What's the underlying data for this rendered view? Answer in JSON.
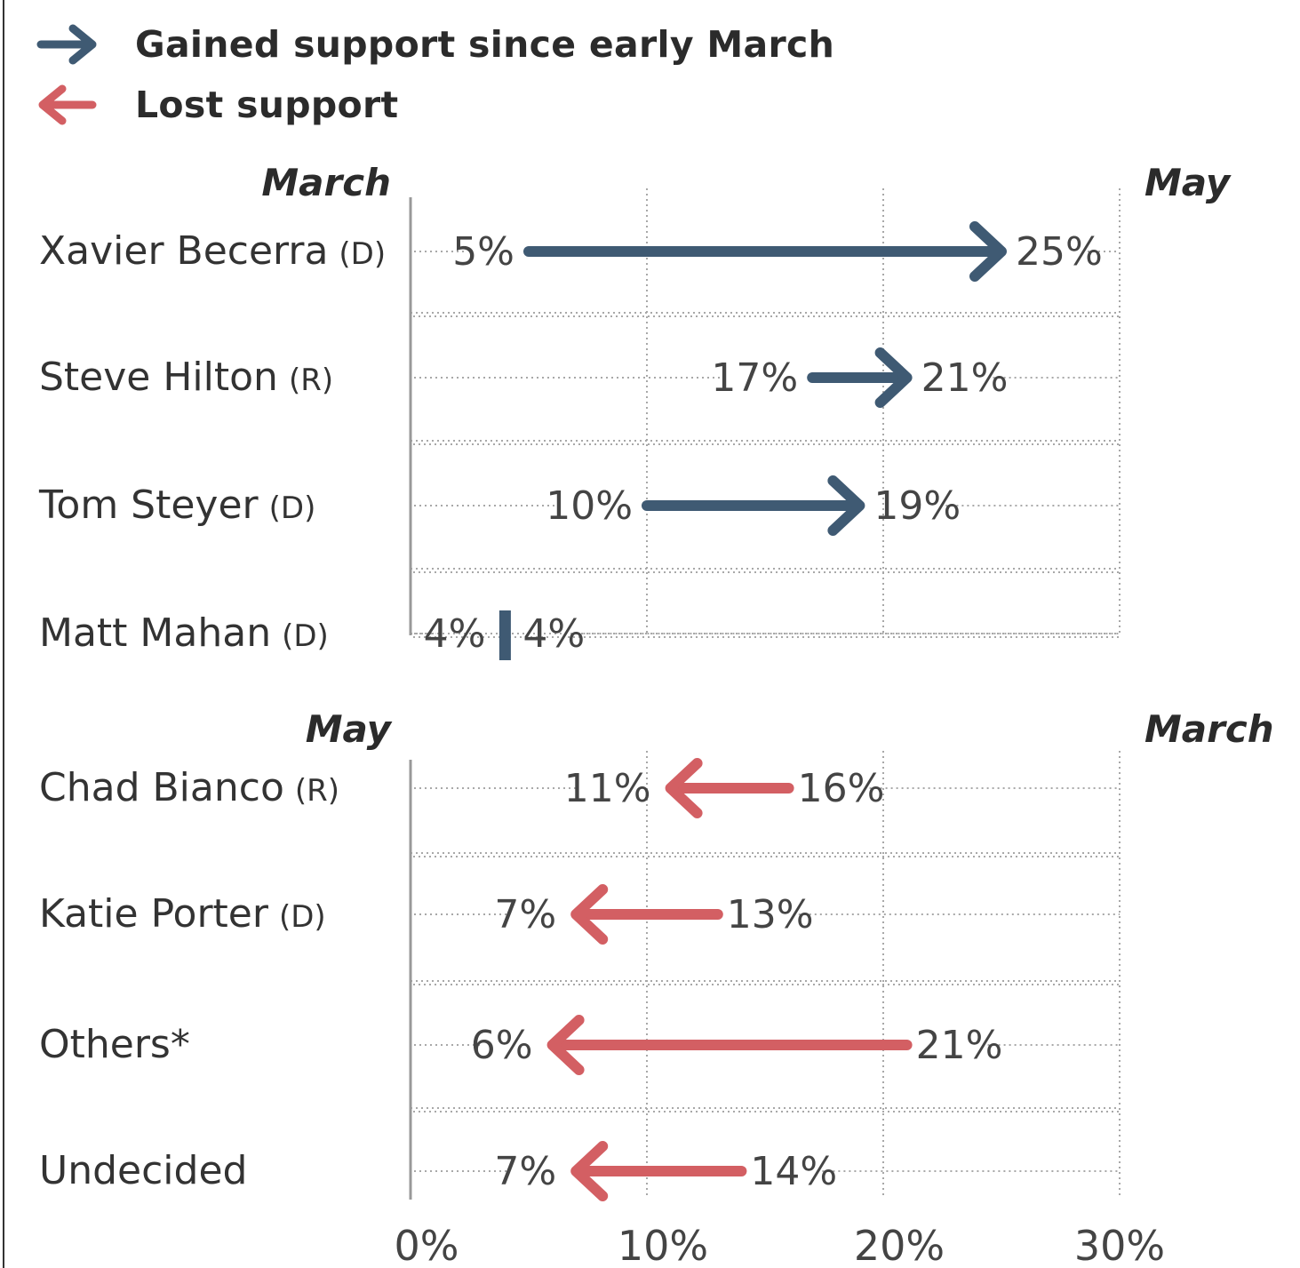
{
  "legend": {
    "gained_label": "Gained support since early March",
    "lost_label": "Lost support"
  },
  "colors": {
    "gained": "#3f5a73",
    "lost": "#d35f63",
    "axis": "#999999",
    "grid": "#a8a8a8",
    "text": "#333333"
  },
  "chart_data": [
    {
      "type": "arrow",
      "section": "gained",
      "left_header": "March",
      "right_header": "May",
      "rows": [
        {
          "name": "Xavier Becerra",
          "party": "(D)",
          "march": 5,
          "may": 25,
          "march_label": "5%",
          "may_label": "25%"
        },
        {
          "name": "Steve Hilton",
          "party": "(R)",
          "march": 17,
          "may": 21,
          "march_label": "17%",
          "may_label": "21%"
        },
        {
          "name": "Tom Steyer",
          "party": "(D)",
          "march": 10,
          "may": 19,
          "march_label": "10%",
          "may_label": "19%"
        },
        {
          "name": "Matt Mahan",
          "party": "(D)",
          "march": 4,
          "may": 4,
          "march_label": "4%",
          "may_label": "4%"
        }
      ]
    },
    {
      "type": "arrow",
      "section": "lost",
      "left_header": "May",
      "right_header": "March",
      "rows": [
        {
          "name": "Chad Bianco",
          "party": "(R)",
          "march": 16,
          "may": 11,
          "march_label": "16%",
          "may_label": "11%"
        },
        {
          "name": "Katie Porter",
          "party": "(D)",
          "march": 13,
          "may": 7,
          "march_label": "13%",
          "may_label": "7%"
        },
        {
          "name": "Others*",
          "party": "",
          "march": 21,
          "may": 6,
          "march_label": "21%",
          "may_label": "6%"
        },
        {
          "name": "Undecided",
          "party": "",
          "march": 14,
          "may": 7,
          "march_label": "14%",
          "may_label": "7%"
        }
      ]
    }
  ],
  "axis": {
    "xlim": [
      0,
      30
    ],
    "ticks": [
      0,
      10,
      20,
      30
    ],
    "tick_labels": [
      "0%",
      "10%",
      "20%",
      "30%"
    ]
  }
}
